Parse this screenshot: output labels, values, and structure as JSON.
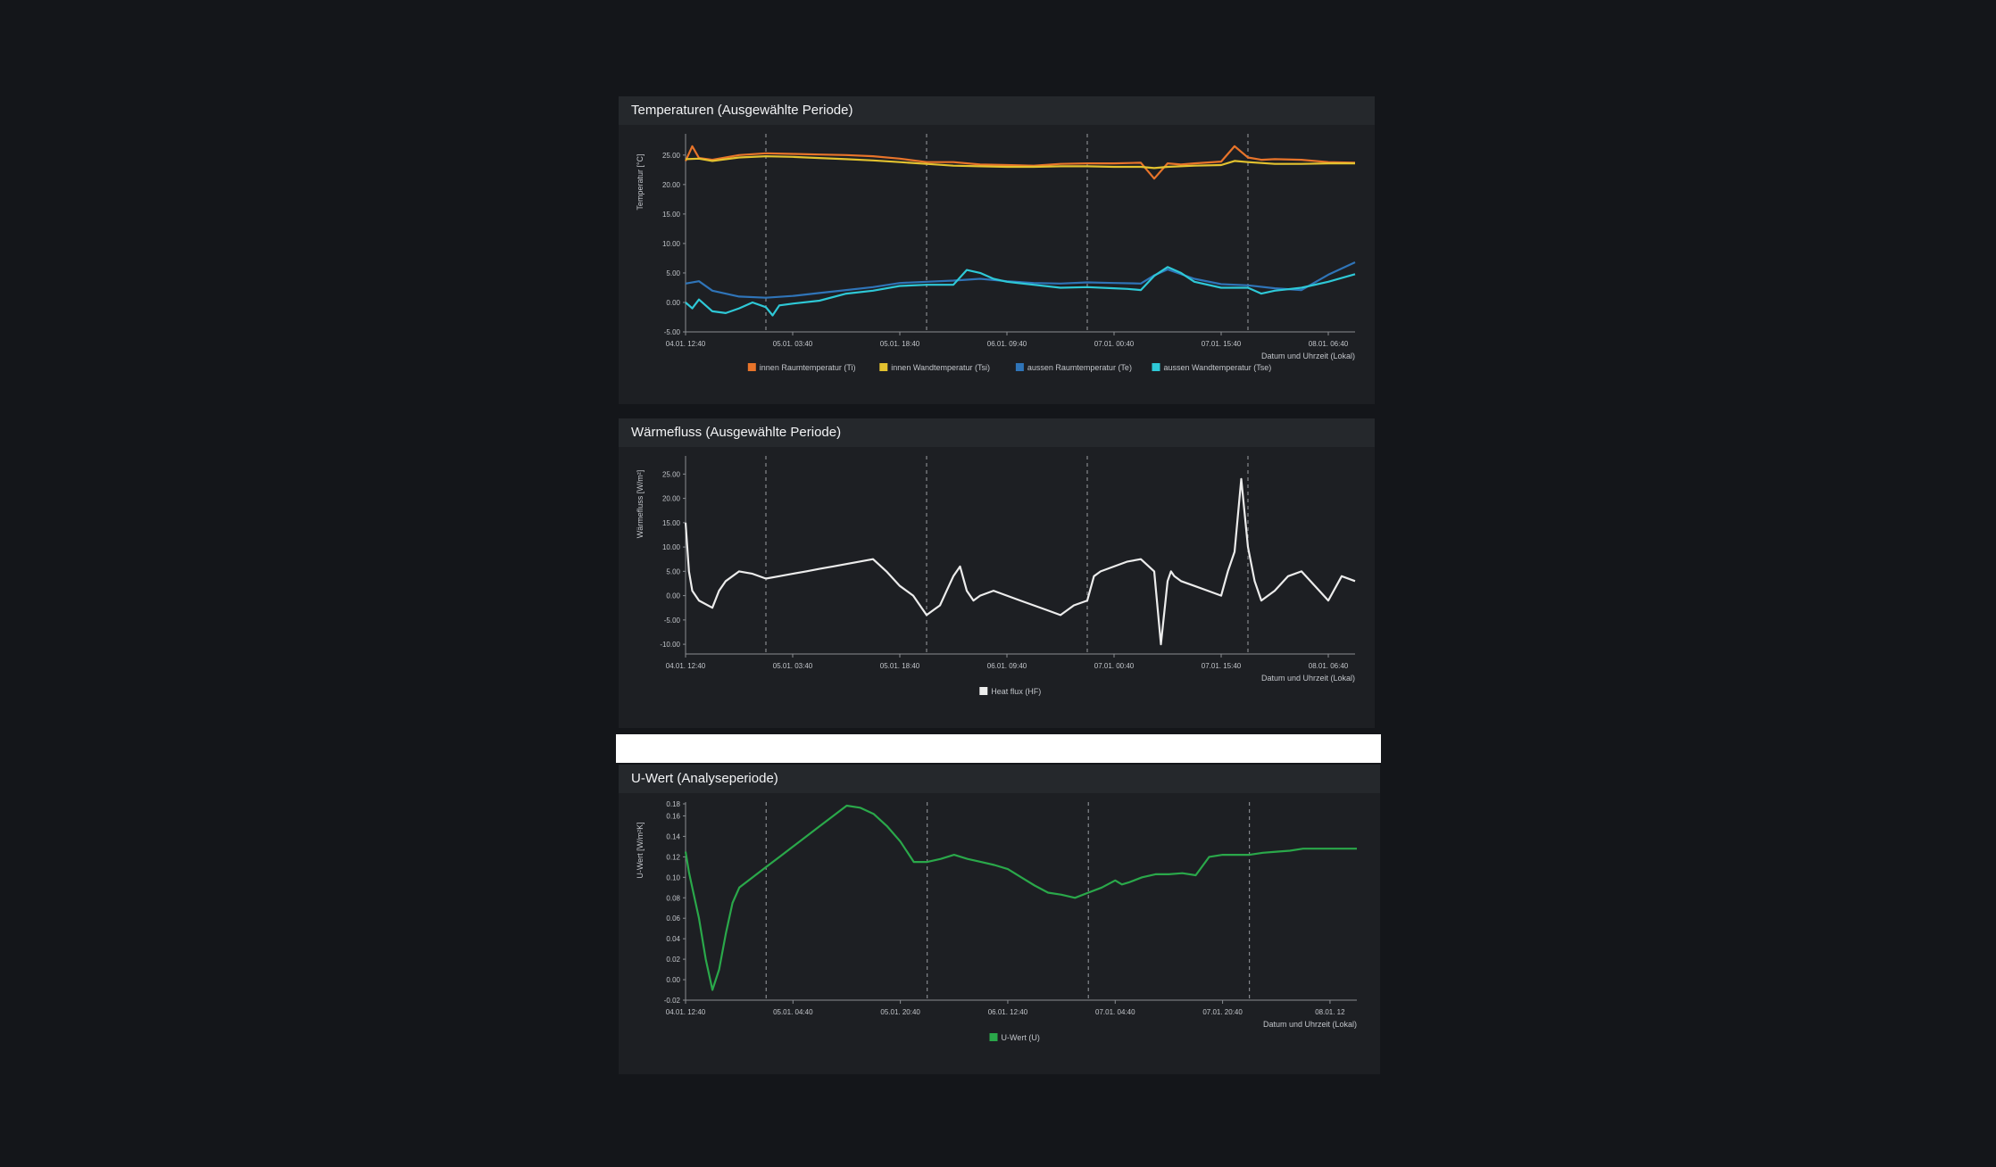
{
  "chart_data": [
    {
      "type": "line",
      "title": "Temperaturen (Ausgewählte Periode)",
      "ylabel": "Temperatur [°C]",
      "xlabel": "Datum und Uhrzeit (Lokal)",
      "ylim": [
        -5,
        28
      ],
      "yticks": [
        "25.00",
        "20.00",
        "15.00",
        "10.00",
        "5.00",
        "0.00",
        "-5.00"
      ],
      "ytick_values": [
        25,
        20,
        15,
        10,
        5,
        0,
        -5
      ],
      "xticks": [
        "04.01. 12:40",
        "05.01. 03:40",
        "05.01. 18:40",
        "06.01. 09:40",
        "07.01. 00:40",
        "07.01. 15:40",
        "08.01. 06:40"
      ],
      "xlim": [
        0,
        100
      ],
      "xtick_pos": [
        0,
        16,
        32,
        48,
        64,
        80,
        96
      ],
      "vlines": [
        12,
        36,
        60,
        84
      ],
      "legend": "bottom",
      "series": [
        {
          "name": "innen Raumtemperatur (Ti)",
          "color": "#e8742a",
          "x": [
            0,
            1,
            2,
            4,
            8,
            12,
            16,
            20,
            24,
            28,
            32,
            36,
            40,
            44,
            48,
            52,
            56,
            60,
            64,
            68,
            70,
            72,
            74,
            76,
            80,
            82,
            84,
            86,
            88,
            92,
            96,
            100
          ],
          "y": [
            24,
            26.5,
            24.5,
            24.2,
            25,
            25.3,
            25.2,
            25.1,
            25,
            24.8,
            24.4,
            23.8,
            23.8,
            23.4,
            23.3,
            23.2,
            23.5,
            23.6,
            23.6,
            23.7,
            21,
            23.6,
            23.4,
            23.6,
            23.9,
            26.5,
            24.6,
            24.2,
            24.3,
            24.2,
            23.8,
            23.7
          ]
        },
        {
          "name": "innen Wandtemperatur (Tsi)",
          "color": "#e3c22f",
          "x": [
            0,
            2,
            4,
            8,
            12,
            16,
            20,
            24,
            28,
            32,
            36,
            40,
            44,
            48,
            52,
            56,
            60,
            64,
            68,
            70,
            72,
            76,
            80,
            82,
            84,
            88,
            92,
            96,
            100
          ],
          "y": [
            24.3,
            24.4,
            24,
            24.6,
            24.8,
            24.7,
            24.5,
            24.3,
            24.1,
            23.8,
            23.5,
            23.2,
            23.1,
            23,
            23,
            23.1,
            23.1,
            23,
            23,
            22.8,
            23,
            23.2,
            23.3,
            24,
            23.8,
            23.5,
            23.5,
            23.6,
            23.6
          ]
        },
        {
          "name": "aussen Raumtemperatur (Te)",
          "color": "#2f74b8",
          "x": [
            0,
            2,
            4,
            8,
            12,
            16,
            20,
            24,
            28,
            32,
            36,
            40,
            44,
            48,
            52,
            56,
            60,
            64,
            68,
            70,
            72,
            76,
            80,
            84,
            88,
            92,
            96,
            100
          ],
          "y": [
            3.2,
            3.6,
            2,
            1,
            0.8,
            1.1,
            1.6,
            2.1,
            2.6,
            3.3,
            3.5,
            3.7,
            4,
            3.6,
            3.3,
            3.2,
            3.4,
            3.3,
            3.2,
            4.6,
            5.6,
            4,
            3.1,
            2.9,
            2.4,
            2.1,
            4.7,
            6.8
          ]
        },
        {
          "name": "aussen Wandtemperatur (Tse)",
          "color": "#2ec8d6",
          "x": [
            0,
            1,
            2,
            4,
            6,
            8,
            10,
            12,
            13,
            14,
            16,
            20,
            24,
            28,
            32,
            36,
            40,
            42,
            44,
            46,
            48,
            52,
            56,
            60,
            64,
            66,
            68,
            70,
            72,
            74,
            76,
            80,
            84,
            86,
            88,
            92,
            96,
            100
          ],
          "y": [
            0,
            -1,
            0.5,
            -1.5,
            -1.8,
            -1,
            0,
            -0.8,
            -2.2,
            -0.5,
            -0.2,
            0.3,
            1.5,
            2,
            2.8,
            3,
            3,
            5.5,
            5,
            4,
            3.5,
            3,
            2.5,
            2.6,
            2.4,
            2.3,
            2.1,
            4.5,
            6,
            5,
            3.5,
            2.5,
            2.5,
            1.5,
            2,
            2.5,
            3.5,
            4.8
          ]
        }
      ]
    },
    {
      "type": "line",
      "title": "Wärmefluss (Ausgewählte Periode)",
      "ylabel": "Wärmefluss [W/m²]",
      "xlabel": "Datum und Uhrzeit (Lokal)",
      "ylim": [
        -12,
        28
      ],
      "yticks": [
        "25.00",
        "20.00",
        "15.00",
        "10.00",
        "5.00",
        "0.00",
        "-5.00",
        "-10.00"
      ],
      "ytick_values": [
        25,
        20,
        15,
        10,
        5,
        0,
        -5,
        -10
      ],
      "xticks": [
        "04.01. 12:40",
        "05.01. 03:40",
        "05.01. 18:40",
        "06.01. 09:40",
        "07.01. 00:40",
        "07.01. 15:40",
        "08.01. 06:40"
      ],
      "xlim": [
        0,
        100
      ],
      "xtick_pos": [
        0,
        16,
        32,
        48,
        64,
        80,
        96
      ],
      "vlines": [
        12,
        36,
        60,
        84
      ],
      "legend": "bottom",
      "series": [
        {
          "name": "Heat flux (HF)",
          "color": "#ececec",
          "x": [
            0,
            0.5,
            1,
            2,
            4,
            5,
            6,
            8,
            10,
            12,
            14,
            16,
            18,
            20,
            22,
            24,
            26,
            28,
            30,
            32,
            34,
            35,
            36,
            37,
            38,
            39,
            40,
            41,
            42,
            43,
            44,
            46,
            48,
            50,
            52,
            54,
            56,
            58,
            60,
            61,
            62,
            64,
            66,
            68,
            70,
            71,
            72,
            72.5,
            73,
            74,
            76,
            78,
            80,
            81,
            82,
            83,
            84,
            85,
            86,
            88,
            90,
            92,
            94,
            96,
            98,
            100
          ],
          "y": [
            15,
            5,
            1,
            -1,
            -2.5,
            1,
            3,
            5,
            4.5,
            3.5,
            4,
            4.5,
            5,
            5.5,
            6,
            6.5,
            7,
            7.5,
            5,
            2,
            0,
            -2,
            -4,
            -3,
            -2,
            1,
            4,
            6,
            1,
            -1,
            0,
            1,
            0,
            -1,
            -2,
            -3,
            -4,
            -2,
            -1,
            4,
            5,
            6,
            7,
            7.5,
            5,
            -10,
            3,
            5,
            4,
            3,
            2,
            1,
            0,
            5,
            9,
            24,
            10,
            3,
            -1,
            1,
            4,
            5,
            2,
            -1,
            4,
            3
          ]
        }
      ]
    },
    {
      "type": "line",
      "title": "U-Wert (Analyseperiode)",
      "ylabel": "U-Wert [W/m²K]",
      "xlabel": "Datum und Uhrzeit (Lokal)",
      "ylim": [
        -0.02,
        0.17
      ],
      "yticks": [
        "0.18",
        "0.16",
        "0.14",
        "0.12",
        "0.10",
        "0.08",
        "0.06",
        "0.04",
        "0.02",
        "0.00",
        "-0.02"
      ],
      "ytick_values": [
        0.18,
        0.16,
        0.14,
        0.12,
        0.1,
        0.08,
        0.06,
        0.04,
        0.02,
        0.0,
        -0.02
      ],
      "xticks": [
        "04.01. 12:40",
        "05.01. 04:40",
        "05.01. 20:40",
        "06.01. 12:40",
        "07.01. 04:40",
        "07.01. 20:40",
        "08.01. 12"
      ],
      "xlim": [
        0,
        100
      ],
      "xtick_pos": [
        0,
        16,
        32,
        48,
        64,
        80,
        96
      ],
      "vlines": [
        12,
        36,
        60,
        84
      ],
      "legend": "bottom",
      "series": [
        {
          "name": "U-Wert (U)",
          "color": "#2aa84a",
          "x": [
            0,
            0.5,
            1,
            2,
            3,
            4,
            5,
            6,
            7,
            8,
            10,
            12,
            14,
            16,
            18,
            20,
            22,
            24,
            26,
            28,
            30,
            32,
            34,
            36,
            38,
            40,
            42,
            44,
            46,
            48,
            50,
            52,
            54,
            56,
            58,
            60,
            62,
            64,
            65,
            66,
            68,
            70,
            72,
            74,
            76,
            78,
            80,
            82,
            84,
            86,
            88,
            90,
            92,
            94,
            96,
            98,
            100
          ],
          "y": [
            0.125,
            0.105,
            0.09,
            0.06,
            0.02,
            -0.01,
            0.01,
            0.045,
            0.075,
            0.09,
            0.1,
            0.11,
            0.12,
            0.13,
            0.14,
            0.15,
            0.16,
            0.17,
            0.168,
            0.162,
            0.15,
            0.135,
            0.115,
            0.115,
            0.118,
            0.122,
            0.118,
            0.115,
            0.112,
            0.108,
            0.1,
            0.092,
            0.085,
            0.083,
            0.08,
            0.085,
            0.09,
            0.097,
            0.093,
            0.095,
            0.1,
            0.103,
            0.103,
            0.104,
            0.102,
            0.12,
            0.122,
            0.122,
            0.122,
            0.124,
            0.125,
            0.126,
            0.128,
            0.128,
            0.128,
            0.128,
            0.128
          ]
        }
      ]
    }
  ]
}
